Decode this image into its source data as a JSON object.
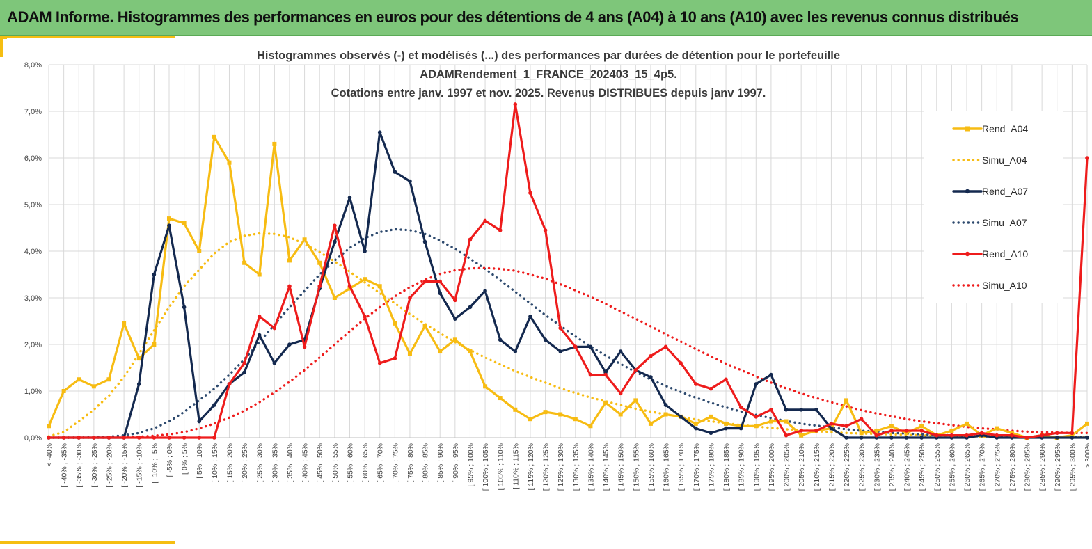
{
  "banner": {
    "title": "ADAM Informe. Histogrammes des performances en euros pour des détentions de 4 ans (A04) à 10 ans (A10) avec les revenus connus distribués"
  },
  "colors": {
    "banner_bg": "#7ec67a",
    "accent": "#f5be12",
    "A04": "#f7bc13",
    "A07": "#14294f",
    "A10": "#ee1c1c",
    "simu_A07": "#2e4a6e"
  },
  "chart_data": {
    "type": "line",
    "title": [
      "Histogrammes observés (-) et modélisés (...) des performances  par durées de détention pour le portefeuille",
      "ADAMRendement_1_FRANCE_202403_15_4p5.",
      "Cotations entre janv. 1997 et nov. 2025. Revenus DISTRIBUES depuis janv 1997."
    ],
    "xlabel": "",
    "ylabel": "",
    "ylim": [
      0,
      8
    ],
    "y_ticks": [
      "0,0%",
      "1,0%",
      "2,0%",
      "3,0%",
      "4,0%",
      "5,0%",
      "6,0%",
      "7,0%",
      "8,0%"
    ],
    "grid": true,
    "legend_position": "right",
    "categories": [
      "< -40%",
      "[ -40% ; -35%",
      "[ -35% ; -30%",
      "[ -30% ; -25%",
      "[ -25% ; -20%",
      "[ -20% ; -15%",
      "[ -15% ; -10%",
      "[ -10% ; -5%",
      "[ -5% ; 0%",
      "[ 0% ; 5%",
      "[ 5% ; 10%",
      "[ 10% ; 15%",
      "[ 15% ; 20%",
      "[ 20% ; 25%",
      "[ 25% ; 30%",
      "[ 30% ; 35%",
      "[ 35% ; 40%",
      "[ 40% ; 45%",
      "[ 45% ; 50%",
      "[ 50% ; 55%",
      "[ 55% ; 60%",
      "[ 60% ; 65%",
      "[ 65% ; 70%",
      "[ 70% ; 75%",
      "[ 75% ; 80%",
      "[ 80% ; 85%",
      "[ 85% ; 90%",
      "[ 90% ; 95%",
      "[ 95% ; 100%",
      "[ 100% ; 105%",
      "[ 105% ; 110%",
      "[ 110% ; 115%",
      "[ 115% ; 120%",
      "[ 120% ; 125%",
      "[ 125% ; 130%",
      "[ 130% ; 135%",
      "[ 135% ; 140%",
      "[ 140% ; 145%",
      "[ 145% ; 150%",
      "[ 150% ; 155%",
      "[ 155% ; 160%",
      "[ 160% ; 165%",
      "[ 165% ; 170%",
      "[ 170% ; 175%",
      "[ 175% ; 180%",
      "[ 180% ; 185%",
      "[ 185% ; 190%",
      "[ 190% ; 195%",
      "[ 195% ; 200%",
      "[ 200% ; 205%",
      "[ 205% ; 210%",
      "[ 210% ; 215%",
      "[ 215% ; 220%",
      "[ 220% ; 225%",
      "[ 225% ; 230%",
      "[ 230% ; 235%",
      "[ 235% ; 240%",
      "[ 240% ; 245%",
      "[ 245% ; 250%",
      "[ 250% ; 255%",
      "[ 255% ; 260%",
      "[ 260% ; 265%",
      "[ 265% ; 270%",
      "[ 270% ; 275%",
      "[ 275% ; 280%",
      "[ 280% ; 285%",
      "[ 285% ; 290%",
      "[ 290% ; 295%",
      "[ 295% ; 300%",
      "> 300%"
    ],
    "series": [
      {
        "name": "Rend_A04",
        "style": "solid",
        "color": "#f7bc13",
        "values": [
          0.25,
          1.0,
          1.25,
          1.1,
          1.25,
          2.45,
          1.7,
          2.0,
          4.7,
          4.6,
          4.0,
          6.45,
          5.9,
          3.75,
          3.5,
          6.3,
          3.8,
          4.25,
          3.75,
          3.0,
          3.2,
          3.4,
          3.25,
          2.45,
          1.8,
          2.4,
          1.85,
          2.1,
          1.85,
          1.1,
          0.85,
          0.6,
          0.4,
          0.55,
          0.5,
          0.4,
          0.25,
          0.75,
          0.5,
          0.8,
          0.3,
          0.5,
          0.45,
          0.3,
          0.45,
          0.3,
          0.25,
          0.25,
          0.35,
          0.35,
          0.05,
          0.15,
          0.2,
          0.8,
          0.1,
          0.15,
          0.25,
          0.1,
          0.25,
          0.05,
          0.15,
          0.3,
          0.05,
          0.2,
          0.1,
          0.0,
          0.05,
          0.0,
          0.05,
          0.3
        ]
      },
      {
        "name": "Simu_A04",
        "style": "dotted",
        "color": "#f7bc13",
        "values": [
          0.03,
          0.12,
          0.35,
          0.6,
          0.9,
          1.3,
          1.8,
          2.3,
          2.8,
          3.25,
          3.6,
          3.95,
          4.2,
          4.33,
          4.38,
          4.37,
          4.3,
          4.15,
          3.98,
          3.78,
          3.56,
          3.33,
          3.1,
          2.88,
          2.65,
          2.44,
          2.24,
          2.05,
          1.88,
          1.72,
          1.57,
          1.43,
          1.3,
          1.18,
          1.06,
          0.96,
          0.86,
          0.78,
          0.7,
          0.62,
          0.56,
          0.5,
          0.44,
          0.39,
          0.35,
          0.31,
          0.27,
          0.24,
          0.21,
          0.18,
          0.16,
          0.14,
          0.12,
          0.1,
          0.09,
          0.08,
          0.07,
          0.06,
          0.05,
          0.04,
          0.035,
          0.03,
          0.025,
          0.02,
          0.017,
          0.014,
          0.012,
          0.01,
          0.008,
          0.006
        ]
      },
      {
        "name": "Rend_A07",
        "style": "solid",
        "color": "#14294f",
        "values": [
          0,
          0,
          0,
          0,
          0,
          0,
          1.15,
          3.5,
          4.55,
          2.8,
          0.35,
          0.7,
          1.15,
          1.4,
          2.2,
          1.6,
          2.0,
          2.1,
          3.2,
          4.2,
          5.15,
          4.0,
          6.55,
          5.7,
          5.5,
          4.2,
          3.1,
          2.55,
          2.8,
          3.15,
          2.1,
          1.85,
          2.6,
          2.1,
          1.85,
          1.95,
          1.95,
          1.4,
          1.85,
          1.45,
          1.3,
          0.7,
          0.45,
          0.2,
          0.1,
          0.2,
          0.2,
          1.15,
          1.35,
          0.6,
          0.6,
          0.6,
          0.2,
          0,
          0,
          0,
          0,
          0,
          0,
          0,
          0,
          0,
          0.05,
          0,
          0,
          0,
          0,
          0,
          0,
          0
        ]
      },
      {
        "name": "Simu_A07",
        "style": "dotted",
        "color": "#2e4a6e",
        "values": [
          0.0,
          0.0,
          0.0,
          0.01,
          0.02,
          0.05,
          0.1,
          0.2,
          0.35,
          0.55,
          0.8,
          1.05,
          1.35,
          1.68,
          2.05,
          2.42,
          2.8,
          3.15,
          3.5,
          3.8,
          4.07,
          4.28,
          4.41,
          4.47,
          4.45,
          4.37,
          4.23,
          4.05,
          3.84,
          3.62,
          3.38,
          3.13,
          2.88,
          2.63,
          2.4,
          2.17,
          1.96,
          1.76,
          1.58,
          1.41,
          1.25,
          1.11,
          0.98,
          0.86,
          0.75,
          0.65,
          0.56,
          0.49,
          0.42,
          0.36,
          0.3,
          0.26,
          0.22,
          0.18,
          0.15,
          0.13,
          0.1,
          0.09,
          0.07,
          0.06,
          0.05,
          0.04,
          0.03,
          0.025,
          0.02,
          0.015,
          0.012,
          0.01,
          0.008,
          0.006
        ]
      },
      {
        "name": "Rend_A10",
        "style": "solid",
        "color": "#ee1c1c",
        "values": [
          0,
          0,
          0,
          0,
          0,
          0,
          0,
          0,
          0,
          0,
          0,
          0,
          1.15,
          1.6,
          2.6,
          2.35,
          3.25,
          1.95,
          3.25,
          4.55,
          3.25,
          2.6,
          1.6,
          1.7,
          3.0,
          3.35,
          3.35,
          2.95,
          4.25,
          4.65,
          4.45,
          7.15,
          5.25,
          4.45,
          2.35,
          1.95,
          1.35,
          1.35,
          0.95,
          1.45,
          1.75,
          1.95,
          1.6,
          1.15,
          1.05,
          1.25,
          0.65,
          0.45,
          0.6,
          0.05,
          0.15,
          0.15,
          0.3,
          0.25,
          0.4,
          0.05,
          0.15,
          0.15,
          0.15,
          0.05,
          0.05,
          0.05,
          0.1,
          0.05,
          0.05,
          0.0,
          0.05,
          0.1,
          0.1,
          6.0
        ]
      },
      {
        "name": "Simu_A10",
        "style": "dotted",
        "color": "#ee1c1c",
        "values": [
          0.0,
          0.0,
          0.0,
          0.0,
          0.0,
          0.01,
          0.02,
          0.04,
          0.07,
          0.12,
          0.2,
          0.3,
          0.43,
          0.58,
          0.76,
          0.97,
          1.2,
          1.45,
          1.72,
          2.0,
          2.28,
          2.55,
          2.8,
          3.03,
          3.23,
          3.39,
          3.51,
          3.59,
          3.63,
          3.64,
          3.62,
          3.58,
          3.5,
          3.41,
          3.29,
          3.16,
          3.02,
          2.87,
          2.71,
          2.55,
          2.39,
          2.22,
          2.06,
          1.9,
          1.74,
          1.59,
          1.45,
          1.31,
          1.18,
          1.06,
          0.95,
          0.85,
          0.76,
          0.67,
          0.59,
          0.52,
          0.46,
          0.4,
          0.35,
          0.31,
          0.27,
          0.23,
          0.2,
          0.18,
          0.15,
          0.13,
          0.12,
          0.11,
          0.1,
          0.1
        ]
      }
    ]
  }
}
